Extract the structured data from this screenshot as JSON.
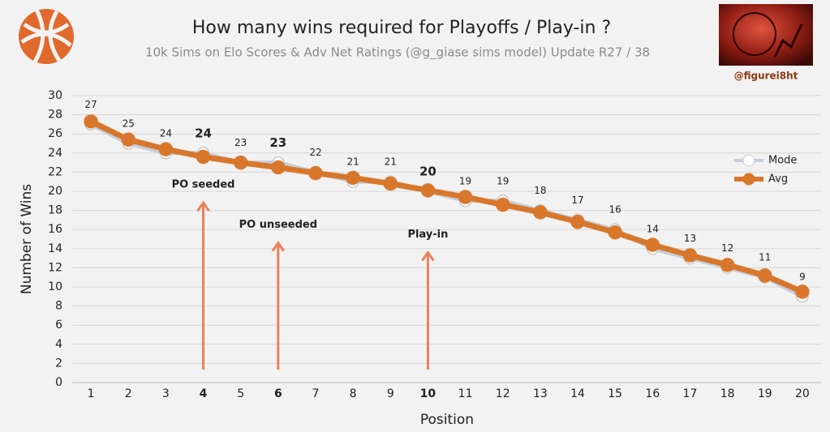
{
  "chart_data": {
    "type": "line",
    "title": "How many wins required for Playoffs / Play-in ?",
    "subtitle": "10k Sims on Elo Scores & Adv Net Ratings (@g_giase sims model) Update R27 / 38",
    "credit": "@figurei8ht",
    "x_label": "Position",
    "y_label": "Number of Wins",
    "x": [
      1,
      2,
      3,
      4,
      5,
      6,
      7,
      8,
      9,
      10,
      11,
      12,
      13,
      14,
      15,
      16,
      17,
      18,
      19,
      20
    ],
    "xlim": [
      0.5,
      20.5
    ],
    "xticks": [
      1,
      2,
      3,
      4,
      5,
      6,
      7,
      8,
      9,
      10,
      11,
      12,
      13,
      14,
      15,
      16,
      17,
      18,
      19,
      20
    ],
    "ylim": [
      0,
      30
    ],
    "yticks": [
      0,
      2,
      4,
      6,
      8,
      10,
      12,
      14,
      16,
      18,
      20,
      22,
      24,
      26,
      28,
      30
    ],
    "grid": true,
    "legend": "right",
    "series": [
      {
        "name": "Mode",
        "color": "#c5ceda",
        "values": [
          27,
          25,
          24,
          24,
          23,
          23,
          22,
          21,
          21,
          20,
          19,
          19,
          18,
          17,
          16,
          14,
          13,
          12,
          11,
          9
        ]
      },
      {
        "name": "Avg",
        "color": "#d8772c",
        "values": [
          27.3,
          25.4,
          24.4,
          23.6,
          23.0,
          22.5,
          21.9,
          21.4,
          20.8,
          20.1,
          19.4,
          18.6,
          17.8,
          16.8,
          15.7,
          14.4,
          13.3,
          12.3,
          11.2,
          9.5
        ]
      }
    ],
    "annotations": [
      {
        "text": "PO seeded",
        "x": 4,
        "y": 18.8
      },
      {
        "text": "PO unseeded",
        "x": 6,
        "y": 14.6
      },
      {
        "text": "Play-in",
        "x": 10,
        "y": 13.6
      }
    ]
  }
}
